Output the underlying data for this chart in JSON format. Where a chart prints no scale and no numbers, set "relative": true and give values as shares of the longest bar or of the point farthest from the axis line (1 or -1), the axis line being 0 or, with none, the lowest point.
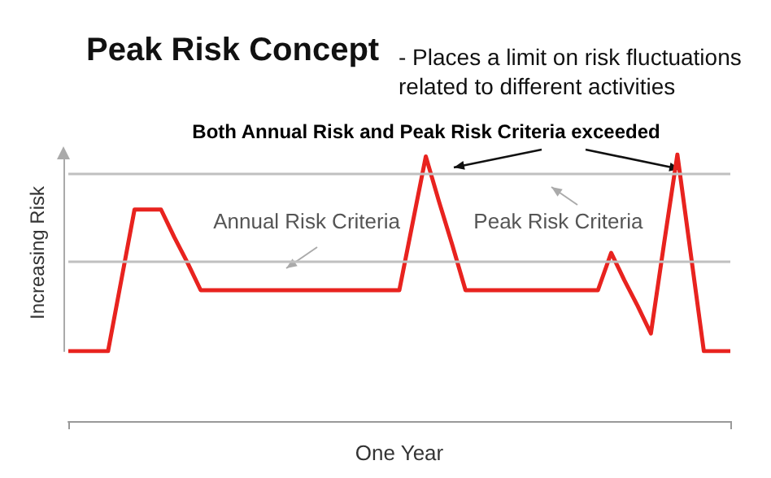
{
  "chart_data": {
    "type": "line",
    "title": "Peak Risk Concept",
    "subtitle": "- Places a limit on risk fluctuations related to different activities",
    "xlabel": "One Year",
    "ylabel": "Increasing Risk",
    "relative": true,
    "categories": [
      null,
      null,
      null,
      null,
      null,
      null,
      null,
      null,
      null,
      null,
      null,
      null,
      null,
      null,
      null,
      null,
      null,
      null,
      null,
      null,
      null,
      null,
      null,
      null,
      null,
      null,
      null,
      null,
      null,
      null,
      null,
      null,
      null,
      null,
      null,
      null,
      null,
      null,
      null,
      null,
      null,
      null,
      null,
      null,
      null,
      null,
      null,
      null,
      null,
      null,
      null
    ],
    "series": [
      {
        "color": "#e8231f",
        "values": [
          0,
          0,
          0,
          0,
          0.36,
          0.72,
          0.72,
          0.72,
          0.58,
          0.45,
          0.31,
          0.31,
          0.31,
          0.31,
          0.31,
          0.31,
          0.31,
          0.31,
          0.31,
          0.31,
          0.31,
          0.31,
          0.31,
          0.31,
          0.31,
          0.31,
          0.65,
          0.99,
          0.76,
          0.54,
          0.31,
          0.31,
          0.31,
          0.31,
          0.31,
          0.31,
          0.31,
          0.31,
          0.31,
          0.31,
          0.31,
          0.5,
          0.36,
          0.23,
          0.09,
          0.55,
          1,
          0.5,
          0,
          0,
          0
        ]
      }
    ],
    "ref_lines": [
      {
        "axis": "y",
        "value": 0.9,
        "label": "Peak Risk Criteria",
        "color": "#c0c0c0"
      },
      {
        "axis": "y",
        "value": 0.46,
        "label": "Annual Risk Criteria",
        "color": "#c0c0c0"
      }
    ],
    "annotations": [
      "Both Annual Risk and Peak Risk Criteria exceeded"
    ],
    "marker": "none",
    "grid": false
  }
}
